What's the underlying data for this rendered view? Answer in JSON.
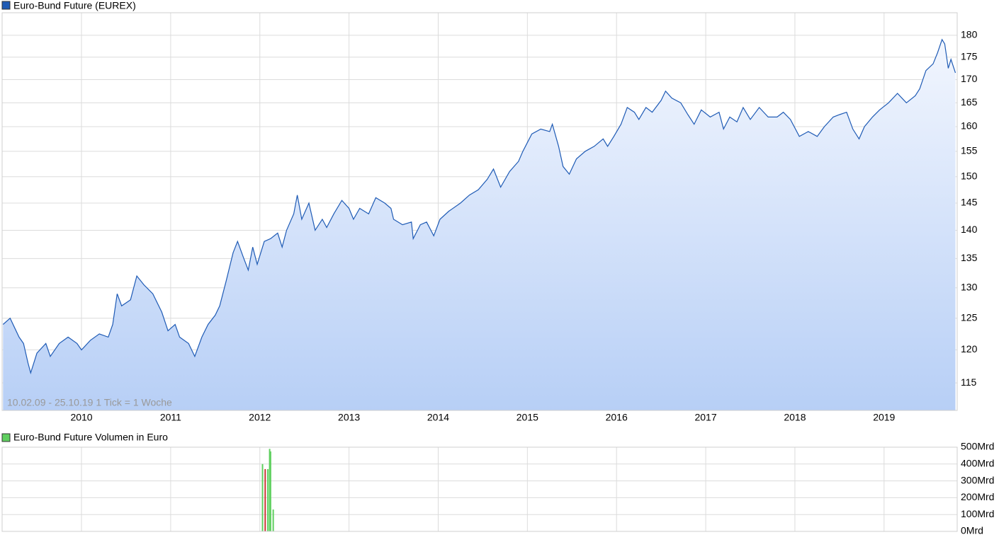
{
  "chart_data": [
    {
      "type": "line",
      "legend": "Euro-Bund Future (EUREX)",
      "color": "#1f5bb5",
      "annotation": "10.02.09 - 25.10.19   1 Tick = 1 Woche",
      "log_scale": true,
      "grid": true,
      "fill_area": true,
      "xlim": [
        2009.11,
        2019.82
      ],
      "xticks": [
        2010,
        2011,
        2012,
        2013,
        2014,
        2015,
        2016,
        2017,
        2018,
        2019
      ],
      "ylim": [
        111,
        185.3
      ],
      "yticks": [
        115,
        120,
        125,
        130,
        135,
        140,
        145,
        150,
        155,
        160,
        165,
        170,
        175,
        180
      ],
      "x": [
        2009.12,
        2009.2,
        2009.3,
        2009.35,
        2009.4,
        2009.43,
        2009.5,
        2009.6,
        2009.65,
        2009.75,
        2009.85,
        2009.95,
        2010.0,
        2010.1,
        2010.2,
        2010.3,
        2010.35,
        2010.4,
        2010.45,
        2010.55,
        2010.62,
        2010.7,
        2010.8,
        2010.9,
        2010.97,
        2011.05,
        2011.1,
        2011.2,
        2011.27,
        2011.35,
        2011.42,
        2011.5,
        2011.55,
        2011.62,
        2011.7,
        2011.75,
        2011.82,
        2011.87,
        2011.92,
        2011.97,
        2012.05,
        2012.12,
        2012.2,
        2012.25,
        2012.3,
        2012.38,
        2012.42,
        2012.47,
        2012.55,
        2012.62,
        2012.7,
        2012.75,
        2012.83,
        2012.92,
        2013.0,
        2013.05,
        2013.12,
        2013.22,
        2013.3,
        2013.4,
        2013.47,
        2013.5,
        2013.6,
        2013.7,
        2013.72,
        2013.8,
        2013.87,
        2013.95,
        2014.02,
        2014.12,
        2014.25,
        2014.35,
        2014.45,
        2014.55,
        2014.62,
        2014.7,
        2014.8,
        2014.9,
        2014.95,
        2015.05,
        2015.15,
        2015.25,
        2015.28,
        2015.35,
        2015.4,
        2015.47,
        2015.55,
        2015.65,
        2015.75,
        2015.85,
        2015.9,
        2015.97,
        2016.05,
        2016.12,
        2016.2,
        2016.25,
        2016.33,
        2016.4,
        2016.5,
        2016.55,
        2016.62,
        2016.72,
        2016.8,
        2016.87,
        2016.95,
        2017.05,
        2017.15,
        2017.2,
        2017.27,
        2017.35,
        2017.42,
        2017.5,
        2017.6,
        2017.7,
        2017.8,
        2017.87,
        2017.95,
        2018.05,
        2018.15,
        2018.25,
        2018.33,
        2018.43,
        2018.5,
        2018.58,
        2018.65,
        2018.72,
        2018.78,
        2018.87,
        2018.95,
        2019.05,
        2019.15,
        2019.25,
        2019.35,
        2019.4,
        2019.47,
        2019.55,
        2019.6,
        2019.65,
        2019.68,
        2019.72,
        2019.75,
        2019.8
      ],
      "values": [
        124,
        125,
        122,
        121,
        118,
        116.5,
        119.5,
        121,
        119,
        121,
        122,
        121,
        120,
        121.5,
        122.5,
        122,
        124,
        129,
        127,
        128,
        132,
        130.5,
        129,
        126,
        123,
        124,
        122,
        121,
        119,
        122,
        124,
        125.5,
        127,
        131,
        136,
        138,
        135,
        133,
        137,
        134,
        138,
        138.5,
        139.5,
        137,
        140,
        143,
        146.5,
        142,
        145,
        140,
        142,
        140.5,
        143,
        145.5,
        144,
        142,
        144,
        143,
        146,
        145,
        144,
        142,
        141,
        141.5,
        138.5,
        141,
        141.5,
        139,
        142,
        143.5,
        145,
        146.5,
        147.5,
        149.5,
        151.5,
        148,
        151,
        153,
        155,
        158.5,
        159.5,
        159,
        160.5,
        156,
        152,
        150.5,
        153.5,
        155,
        156,
        157.5,
        156,
        158,
        160.5,
        164,
        163,
        161.5,
        164,
        163,
        165.5,
        167.5,
        166,
        165,
        162.5,
        160.5,
        163.5,
        162,
        163,
        159.5,
        162,
        161,
        164,
        161.5,
        164,
        162,
        162,
        163,
        161.5,
        158,
        159,
        158,
        160,
        162,
        162.5,
        163,
        159.5,
        157.5,
        160,
        162,
        163.5,
        165,
        167,
        165,
        166.5,
        168,
        172,
        173.5,
        176,
        179,
        178,
        172.5,
        174.5,
        171.5
      ]
    },
    {
      "type": "bar",
      "legend": "Euro-Bund Future Volumen in Euro",
      "color": "#5fcf5f",
      "grid": true,
      "xlim": [
        2009.11,
        2019.82
      ],
      "xticks": [
        2010,
        2011,
        2012,
        2013,
        2014,
        2015,
        2016,
        2017,
        2018,
        2019
      ],
      "ylim": [
        0,
        500
      ],
      "yticks": [
        {
          "value": 0,
          "label": "0Mrd"
        },
        {
          "value": 100,
          "label": "100Mrd"
        },
        {
          "value": 200,
          "label": "200Mrd"
        },
        {
          "value": 300,
          "label": "300Mrd"
        },
        {
          "value": 400,
          "label": "400Mrd"
        },
        {
          "value": 500,
          "label": "500Mrd"
        }
      ],
      "x": [
        2012.03,
        2012.06,
        2012.09,
        2012.11,
        2012.12,
        2012.15
      ],
      "values": [
        400,
        370,
        370,
        490,
        475,
        130
      ],
      "colors": [
        "#5fcf5f",
        "#cc3333",
        "#5fcf5f",
        "#5fcf5f",
        "#5fcf5f",
        "#5fcf5f"
      ]
    }
  ]
}
